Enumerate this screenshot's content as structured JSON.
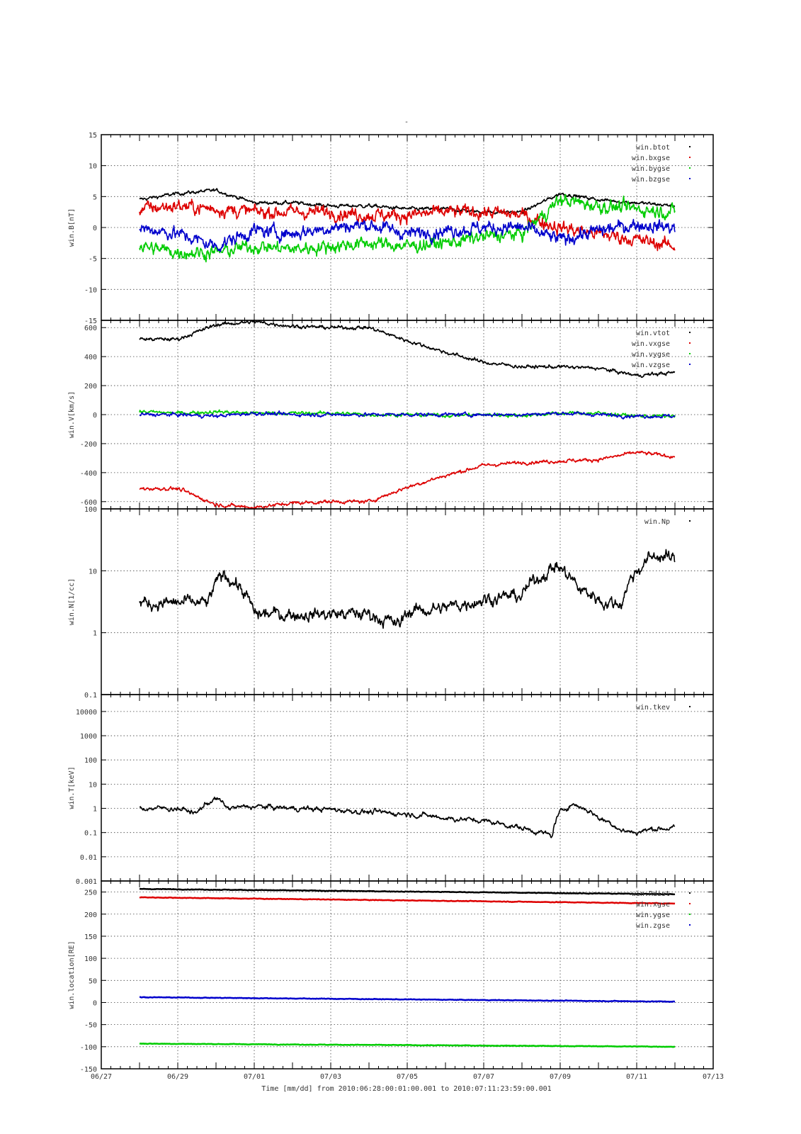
{
  "figure": {
    "top_mark": "-",
    "x_axis": {
      "type": "time",
      "range": [
        "2010-06-27",
        "2010-07-13"
      ],
      "tick_labels": [
        "06/27",
        "06/29",
        "07/01",
        "07/03",
        "07/05",
        "07/07",
        "07/09",
        "07/11",
        "07/13"
      ],
      "xlabel": "Time [mm/dd]  from 2010:06:28:00:01:00.001  to  2010:07:11:23:59:00.001"
    },
    "grid": "dotted",
    "legend_placement": "top-right",
    "colors": {
      "black": "#000000",
      "red": "#dd0000",
      "green": "#00cc00",
      "blue": "#0000cc"
    }
  },
  "chart_data": [
    {
      "type": "scatter",
      "ylabel": "win.B[nT]",
      "ylim": [
        -15,
        15
      ],
      "y_scale": "linear",
      "yticks": [
        "-15",
        "-10",
        "-5",
        "0",
        "5",
        "10",
        "15"
      ],
      "x": [
        "06/28",
        "06/29",
        "06/30",
        "07/01",
        "07/02",
        "07/03",
        "07/04",
        "07/05",
        "07/06",
        "07/07",
        "07/08",
        "07/09",
        "07/10",
        "07/11",
        "07/12"
      ],
      "series": [
        {
          "name": "win.btot",
          "color": "#000000",
          "values": [
            4.5,
            5.5,
            6.0,
            4.0,
            4.0,
            3.5,
            3.5,
            3.0,
            3.0,
            2.5,
            2.5,
            5.5,
            4.5,
            4.0,
            3.5
          ]
        },
        {
          "name": "win.bxgse",
          "color": "#dd0000",
          "values": [
            3.0,
            3.5,
            3.0,
            2.5,
            2.5,
            2.5,
            2.0,
            2.0,
            2.5,
            2.5,
            2.0,
            0.0,
            -1.0,
            -2.0,
            -3.0
          ]
        },
        {
          "name": "win.bygse",
          "color": "#00cc00",
          "values": [
            -3.0,
            -4.0,
            -4.0,
            -3.0,
            -3.5,
            -3.0,
            -2.5,
            -3.0,
            -2.5,
            -1.5,
            -1.0,
            4.5,
            3.5,
            3.0,
            2.5
          ]
        },
        {
          "name": "win.bzgse",
          "color": "#0000cc",
          "values": [
            0.0,
            -1.0,
            -3.0,
            -0.5,
            -1.0,
            0.0,
            0.5,
            -1.0,
            -0.5,
            0.0,
            0.0,
            -2.0,
            -0.5,
            0.5,
            0.0
          ]
        }
      ]
    },
    {
      "type": "scatter",
      "ylabel": "win.V[km/s]",
      "ylim": [
        -650,
        650
      ],
      "y_scale": "linear",
      "yticks": [
        "-600",
        "-400",
        "-200",
        "0",
        "200",
        "400",
        "600"
      ],
      "x": [
        "06/28",
        "06/29",
        "06/30",
        "07/01",
        "07/02",
        "07/03",
        "07/04",
        "07/05",
        "07/06",
        "07/07",
        "07/08",
        "07/09",
        "07/10",
        "07/11",
        "07/12"
      ],
      "series": [
        {
          "name": "win.vtot",
          "color": "#000000",
          "values": [
            520,
            520,
            620,
            640,
            610,
            600,
            600,
            510,
            430,
            360,
            330,
            330,
            320,
            270,
            290
          ]
        },
        {
          "name": "win.vxgse",
          "color": "#dd0000",
          "values": [
            -510,
            -510,
            -620,
            -640,
            -610,
            -600,
            -600,
            -500,
            -420,
            -350,
            -330,
            -320,
            -310,
            -260,
            -290
          ]
        },
        {
          "name": "win.vygse",
          "color": "#00cc00",
          "values": [
            20,
            10,
            20,
            10,
            10,
            10,
            0,
            0,
            -5,
            0,
            -5,
            10,
            10,
            -10,
            -10
          ]
        },
        {
          "name": "win.vzgse",
          "color": "#0000cc",
          "values": [
            0,
            0,
            -10,
            10,
            0,
            0,
            0,
            0,
            0,
            0,
            0,
            10,
            0,
            -10,
            -10
          ]
        }
      ]
    },
    {
      "type": "scatter",
      "ylabel": "win.N[1/cc]",
      "ylim": [
        0.1,
        100
      ],
      "y_scale": "log",
      "yticks": [
        "0.1",
        "1",
        "10",
        "100"
      ],
      "x": [
        "06/28",
        "06/29",
        "06/29.8",
        "06/30.2",
        "07/01",
        "07/02",
        "07/03",
        "07/04",
        "07/04.8",
        "07/05",
        "07/06",
        "07/07",
        "07/08",
        "07/08.9",
        "07/09.5",
        "07/10.2",
        "07/10.6",
        "07/11",
        "07/11.5",
        "07/12"
      ],
      "series": [
        {
          "name": "win.Np",
          "color": "#000000",
          "values": [
            3,
            3,
            3,
            9,
            2,
            2,
            2,
            2,
            1.3,
            2.2,
            2.5,
            3.5,
            4,
            12,
            5,
            3,
            3,
            10,
            18,
            15
          ]
        }
      ]
    },
    {
      "type": "scatter",
      "ylabel": "win.T[keV]",
      "ylim": [
        0.001,
        50000
      ],
      "y_scale": "log",
      "yticks": [
        "0.001",
        "0.01",
        "0.1",
        "1",
        "10",
        "100",
        "1000",
        "10000"
      ],
      "x": [
        "06/28",
        "06/29",
        "06/29.5",
        "06/30",
        "06/30.3",
        "07/01",
        "07/02",
        "07/03",
        "07/04",
        "07/05",
        "07/06",
        "07/07",
        "07/08",
        "07/08.8",
        "07/09.3",
        "07/10",
        "07/10.6",
        "07/11",
        "07/11.5",
        "07/12"
      ],
      "series": [
        {
          "name": "win.tkev",
          "color": "#000000",
          "values": [
            1,
            1,
            0.6,
            2.5,
            1,
            1.2,
            1,
            0.9,
            0.7,
            0.6,
            0.4,
            0.3,
            0.15,
            0.07,
            1.5,
            0.4,
            0.12,
            0.1,
            0.15,
            0.15
          ]
        }
      ]
    },
    {
      "type": "scatter",
      "ylabel": "win.location[RE]",
      "ylim": [
        -150,
        275
      ],
      "y_scale": "linear",
      "yticks": [
        "-150",
        "-100",
        "-50",
        "0",
        "50",
        "100",
        "150",
        "200",
        "250"
      ],
      "x": [
        "06/28",
        "07/12"
      ],
      "series": [
        {
          "name": "win.Rdist",
          "color": "#000000",
          "values": [
            257,
            245
          ]
        },
        {
          "name": "win.xgse",
          "color": "#dd0000",
          "values": [
            238,
            224
          ]
        },
        {
          "name": "win.ygse",
          "color": "#00cc00",
          "values": [
            -93,
            -100
          ]
        },
        {
          "name": "win.zgse",
          "color": "#0000cc",
          "values": [
            12,
            2
          ]
        }
      ]
    }
  ]
}
